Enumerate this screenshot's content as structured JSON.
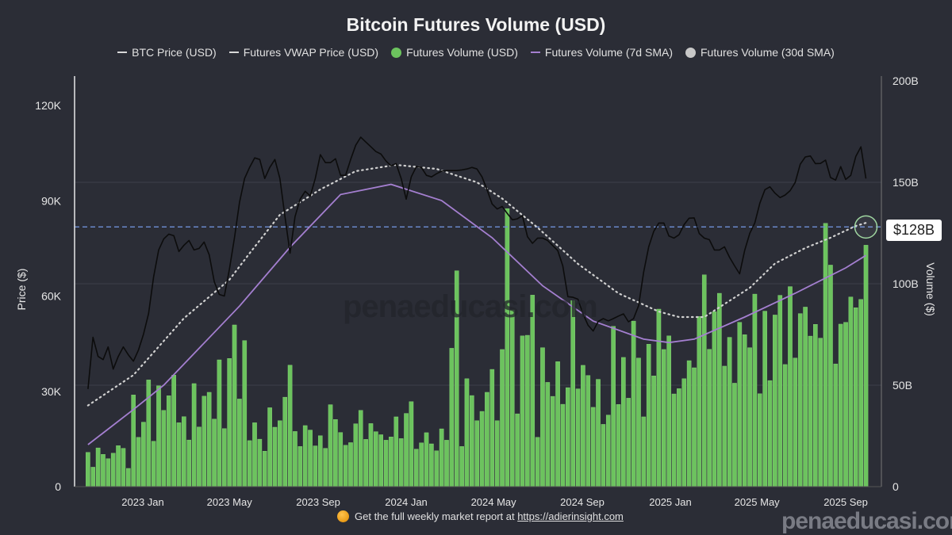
{
  "chart_data": {
    "type": "bar",
    "title": "Bitcoin Futures Volume (USD)",
    "ylabel_left": "Price ($)",
    "ylabel_right": "Volume ($)",
    "left_axis": {
      "range": [
        0,
        127.75
      ],
      "unit": "K USD",
      "ticks": [
        {
          "value": 0,
          "label": "0"
        },
        {
          "value": 30,
          "label": "30K"
        },
        {
          "value": 60,
          "label": "60K"
        },
        {
          "value": 90,
          "label": "90K"
        },
        {
          "value": 120,
          "label": "120K"
        }
      ]
    },
    "right_axis": {
      "range": [
        0,
        200
      ],
      "unit": "B USD",
      "ticks": [
        {
          "value": 0,
          "label": "0"
        },
        {
          "value": 50,
          "label": "50B"
        },
        {
          "value": 100,
          "label": "100B"
        },
        {
          "value": 150,
          "label": "150B"
        },
        {
          "value": 200,
          "label": "200B"
        }
      ]
    },
    "x_ticks": [
      {
        "date": "2023-01-01",
        "label": "2023 Jan"
      },
      {
        "date": "2023-05-01",
        "label": "2023 May"
      },
      {
        "date": "2023-09-01",
        "label": "2023 Sep"
      },
      {
        "date": "2024-01-01",
        "label": "2024 Jan"
      },
      {
        "date": "2024-05-01",
        "label": "2024 May"
      },
      {
        "date": "2024-09-01",
        "label": "2024 Sep"
      },
      {
        "date": "2025-01-01",
        "label": "2025 Jan"
      },
      {
        "date": "2025-05-01",
        "label": "2025 May"
      },
      {
        "date": "2025-09-01",
        "label": "2025 Sep"
      }
    ],
    "grid": "horizontal",
    "legend_position": "top",
    "legend": [
      {
        "name": "BTC Price (USD)",
        "marker": "line",
        "color": "#d8d8d8"
      },
      {
        "name": "Futures VWAP Price (USD)",
        "marker": "line",
        "color": "#d8d8d8"
      },
      {
        "name": "Futures Volume (USD)",
        "marker": "dot",
        "color": "#6cc35e"
      },
      {
        "name": "Futures Volume (7d SMA)",
        "marker": "line",
        "color": "#a47fd0"
      },
      {
        "name": "Futures Volume (30d SMA)",
        "marker": "dot",
        "color": "#c8c8c8"
      }
    ],
    "colors": {
      "volume": "#6cc35e",
      "price": "#0c0c0c",
      "sma7": "#a47fd0",
      "sma30": "#d0d0d0",
      "reference": "#6f8fd6"
    },
    "weeks": [
      "2022-10-17",
      "2022-10-24",
      "2022-10-31",
      "2022-11-07",
      "2022-11-14",
      "2022-11-21",
      "2022-11-28",
      "2022-12-05",
      "2022-12-12",
      "2022-12-19",
      "2022-12-26",
      "2023-01-02",
      "2023-01-09",
      "2023-01-16",
      "2023-01-23",
      "2023-01-30",
      "2023-02-06",
      "2023-02-13",
      "2023-02-20",
      "2023-02-27",
      "2023-03-06",
      "2023-03-13",
      "2023-03-20",
      "2023-03-27",
      "2023-04-03",
      "2023-04-10",
      "2023-04-17",
      "2023-04-24",
      "2023-05-01",
      "2023-05-08",
      "2023-05-15",
      "2023-05-22",
      "2023-05-29",
      "2023-06-05",
      "2023-06-12",
      "2023-06-19",
      "2023-06-26",
      "2023-07-03",
      "2023-07-10",
      "2023-07-17",
      "2023-07-24",
      "2023-07-31",
      "2023-08-07",
      "2023-08-14",
      "2023-08-21",
      "2023-08-28",
      "2023-09-04",
      "2023-09-11",
      "2023-09-18",
      "2023-09-25",
      "2023-10-02",
      "2023-10-09",
      "2023-10-16",
      "2023-10-23",
      "2023-10-30",
      "2023-11-06",
      "2023-11-13",
      "2023-11-20",
      "2023-11-27",
      "2023-12-04",
      "2023-12-11",
      "2023-12-18",
      "2023-12-25",
      "2024-01-01",
      "2024-01-08",
      "2024-01-15",
      "2024-01-22",
      "2024-01-29",
      "2024-02-05",
      "2024-02-12",
      "2024-02-19",
      "2024-02-26",
      "2024-03-04",
      "2024-03-11",
      "2024-03-18",
      "2024-03-25",
      "2024-04-01",
      "2024-04-08",
      "2024-04-15",
      "2024-04-22",
      "2024-04-29",
      "2024-05-06",
      "2024-05-13",
      "2024-05-20",
      "2024-05-27",
      "2024-06-03",
      "2024-06-10",
      "2024-06-17",
      "2024-06-24",
      "2024-07-01",
      "2024-07-08",
      "2024-07-15",
      "2024-07-22",
      "2024-07-29",
      "2024-08-05",
      "2024-08-12",
      "2024-08-19",
      "2024-08-26",
      "2024-09-02",
      "2024-09-09",
      "2024-09-16",
      "2024-09-23",
      "2024-09-30",
      "2024-10-07",
      "2024-10-14",
      "2024-10-21",
      "2024-10-28",
      "2024-11-04",
      "2024-11-11",
      "2024-11-18",
      "2024-11-25",
      "2024-12-02",
      "2024-12-09",
      "2024-12-16",
      "2024-12-23",
      "2024-12-30",
      "2025-01-06",
      "2025-01-13",
      "2025-01-20",
      "2025-01-27",
      "2025-02-03",
      "2025-02-10",
      "2025-02-17",
      "2025-02-24",
      "2025-03-03",
      "2025-03-10",
      "2025-03-17",
      "2025-03-24",
      "2025-03-31",
      "2025-04-07",
      "2025-04-14",
      "2025-04-21",
      "2025-04-28",
      "2025-05-05",
      "2025-05-12",
      "2025-05-19",
      "2025-05-26",
      "2025-06-02",
      "2025-06-09",
      "2025-06-16",
      "2025-06-23",
      "2025-06-30",
      "2025-07-07",
      "2025-07-14",
      "2025-07-21",
      "2025-07-28",
      "2025-08-04",
      "2025-08-11",
      "2025-08-18",
      "2025-08-25",
      "2025-09-01",
      "2025-09-08",
      "2025-09-15",
      "2025-09-22",
      "2025-09-29"
    ],
    "futures_volume_b": [
      16.9,
      9.6,
      19.1,
      15.9,
      13.8,
      16.5,
      20.2,
      18.9,
      9.0,
      45.2,
      24.3,
      31.8,
      52.6,
      22.4,
      49.7,
      37.6,
      44.8,
      55.0,
      31.5,
      34.5,
      23.0,
      50.8,
      29.4,
      44.6,
      46.5,
      33.3,
      62.5,
      28.6,
      63.2,
      79.7,
      43.2,
      72.0,
      22.7,
      31.5,
      23.4,
      17.5,
      38.9,
      29.3,
      32.5,
      44.1,
      59.9,
      27.2,
      19.8,
      30.1,
      27.9,
      20.1,
      25.1,
      18.9,
      40.4,
      33.1,
      26.7,
      20.4,
      21.7,
      31.0,
      37.6,
      23.3,
      31.1,
      27.1,
      25.6,
      22.9,
      24.5,
      34.4,
      23.7,
      36.1,
      41.9,
      18.5,
      21.6,
      26.6,
      21.1,
      17.7,
      28.5,
      22.9,
      68.2,
      106.4,
      19.8,
      53.2,
      44.9,
      32.5,
      37.1,
      46.5,
      57.8,
      32.5,
      67.6,
      137.0,
      87.1,
      35.9,
      74.3,
      74.6,
      94.4,
      24.3,
      68.5,
      51.4,
      44.5,
      61.6,
      40.6,
      48.8,
      91.7,
      48.2,
      59.8,
      54.8,
      39.1,
      52.9,
      30.7,
      35.3,
      79.0,
      40.5,
      63.7,
      43.6,
      81.6,
      63.4,
      34.4,
      70.2,
      54.6,
      87.5,
      67.6,
      74.3,
      45.7,
      48.3,
      53.2,
      62.1,
      58.6,
      83.9,
      104.4,
      67.7,
      86.2,
      95.3,
      59.4,
      73.6,
      51.0,
      81.0,
      74.9,
      68.5,
      94.9,
      45.8,
      86.5,
      52.3,
      84.6,
      94.3,
      60.2,
      98.6,
      63.4,
      85.3,
      88.5,
      74.2,
      80.0,
      73.2,
      129.8,
      109.2,
      60.5,
      80.1,
      81.0,
      93.5,
      88.2,
      92.3,
      119.0,
      139.3
    ],
    "btc_price_k": [
      30.75,
      47,
      41,
      40,
      44,
      37,
      41,
      44,
      41.5,
      39.5,
      43,
      48,
      54.5,
      66,
      74.5,
      78,
      79.5,
      79,
      74,
      76,
      77.5,
      74.5,
      75,
      77,
      73,
      64.5,
      60.5,
      60,
      68.5,
      78.25,
      89.5,
      97,
      100.5,
      103.5,
      103,
      97,
      100.5,
      103,
      97,
      85,
      73.5,
      85,
      90.5,
      93,
      91.5,
      97,
      104.5,
      102,
      102,
      103.25,
      98,
      98,
      103,
      107.5,
      110,
      108.5,
      107,
      105.5,
      104.7,
      102.5,
      101,
      101.7,
      97,
      90.5,
      97.5,
      100.75,
      100.5,
      98,
      97.5,
      98.5,
      99.3,
      99.5,
      99.5,
      99.5,
      99.7,
      100,
      100.5,
      100,
      97.5,
      93.5,
      89,
      87.4,
      88.2,
      86,
      84,
      84.3,
      85.3,
      78.7,
      76.6,
      78.25,
      78.25,
      77.5,
      75.9,
      74.3,
      69.5,
      59.8,
      59.6,
      59,
      54.4,
      50.8,
      49,
      52,
      52.9,
      52.2,
      52.9,
      53.7,
      54.4,
      51.9,
      52.9,
      57,
      67.5,
      75.5,
      80.4,
      83,
      83,
      78.9,
      78.25,
      79.3,
      82.5,
      84.5,
      84.6,
      79.7,
      78.25,
      77.75,
      74.5,
      74.5,
      75.5,
      72.2,
      69.5,
      67,
      74.4,
      79.75,
      83,
      89.25,
      93.5,
      94.4,
      92.4,
      91,
      91.8,
      93.2,
      95.8,
      101.5,
      103.8,
      104.1,
      101.7,
      101.75,
      102.8,
      97.3,
      96.5,
      100.75,
      96.7,
      98,
      104,
      107,
      97
    ],
    "sma7_volume_b": [
      [
        "2022-10-17",
        20.7
      ],
      [
        "2022-12-19",
        38
      ],
      [
        "2023-01-30",
        50
      ],
      [
        "2023-05-15",
        89
      ],
      [
        "2023-07-24",
        118
      ],
      [
        "2023-10-02",
        144
      ],
      [
        "2023-12-11",
        149
      ],
      [
        "2024-02-19",
        141
      ],
      [
        "2024-04-29",
        122.7
      ],
      [
        "2024-07-08",
        99
      ],
      [
        "2024-09-16",
        81.6
      ],
      [
        "2024-11-25",
        72.7
      ],
      [
        "2024-12-30",
        71
      ],
      [
        "2025-02-03",
        72.7
      ],
      [
        "2025-04-14",
        83.6
      ],
      [
        "2025-06-23",
        95.3
      ],
      [
        "2025-09-01",
        107.8
      ],
      [
        "2025-09-29",
        114
      ]
    ],
    "sma30_volume_b": [
      [
        "2022-10-17",
        40
      ],
      [
        "2022-12-19",
        55
      ],
      [
        "2023-02-27",
        83
      ],
      [
        "2023-05-01",
        102
      ],
      [
        "2023-05-29",
        115
      ],
      [
        "2023-07-10",
        134
      ],
      [
        "2023-09-04",
        146.5
      ],
      [
        "2023-10-23",
        155.5
      ],
      [
        "2023-12-18",
        158.6
      ],
      [
        "2024-02-12",
        156.6
      ],
      [
        "2024-04-08",
        150
      ],
      [
        "2024-05-13",
        142
      ],
      [
        "2024-07-01",
        127.7
      ],
      [
        "2024-08-26",
        109.8
      ],
      [
        "2024-10-21",
        95.3
      ],
      [
        "2024-12-16",
        86.3
      ],
      [
        "2025-01-13",
        83.6
      ],
      [
        "2025-02-17",
        83.6
      ],
      [
        "2025-03-17",
        90
      ],
      [
        "2025-04-21",
        98
      ],
      [
        "2025-05-26",
        110
      ],
      [
        "2025-07-07",
        117.6
      ],
      [
        "2025-08-11",
        122.7
      ],
      [
        "2025-09-15",
        128.5
      ],
      [
        "2025-09-29",
        130
      ]
    ],
    "reference_line": {
      "value_b": 128,
      "label": "$128B",
      "style": "dashed"
    }
  },
  "footer": {
    "text": "Get the full weekly market report at ",
    "link": "https://adierinsight.com",
    "icon": "coin-icon"
  },
  "watermark": "penaeducasi.com"
}
